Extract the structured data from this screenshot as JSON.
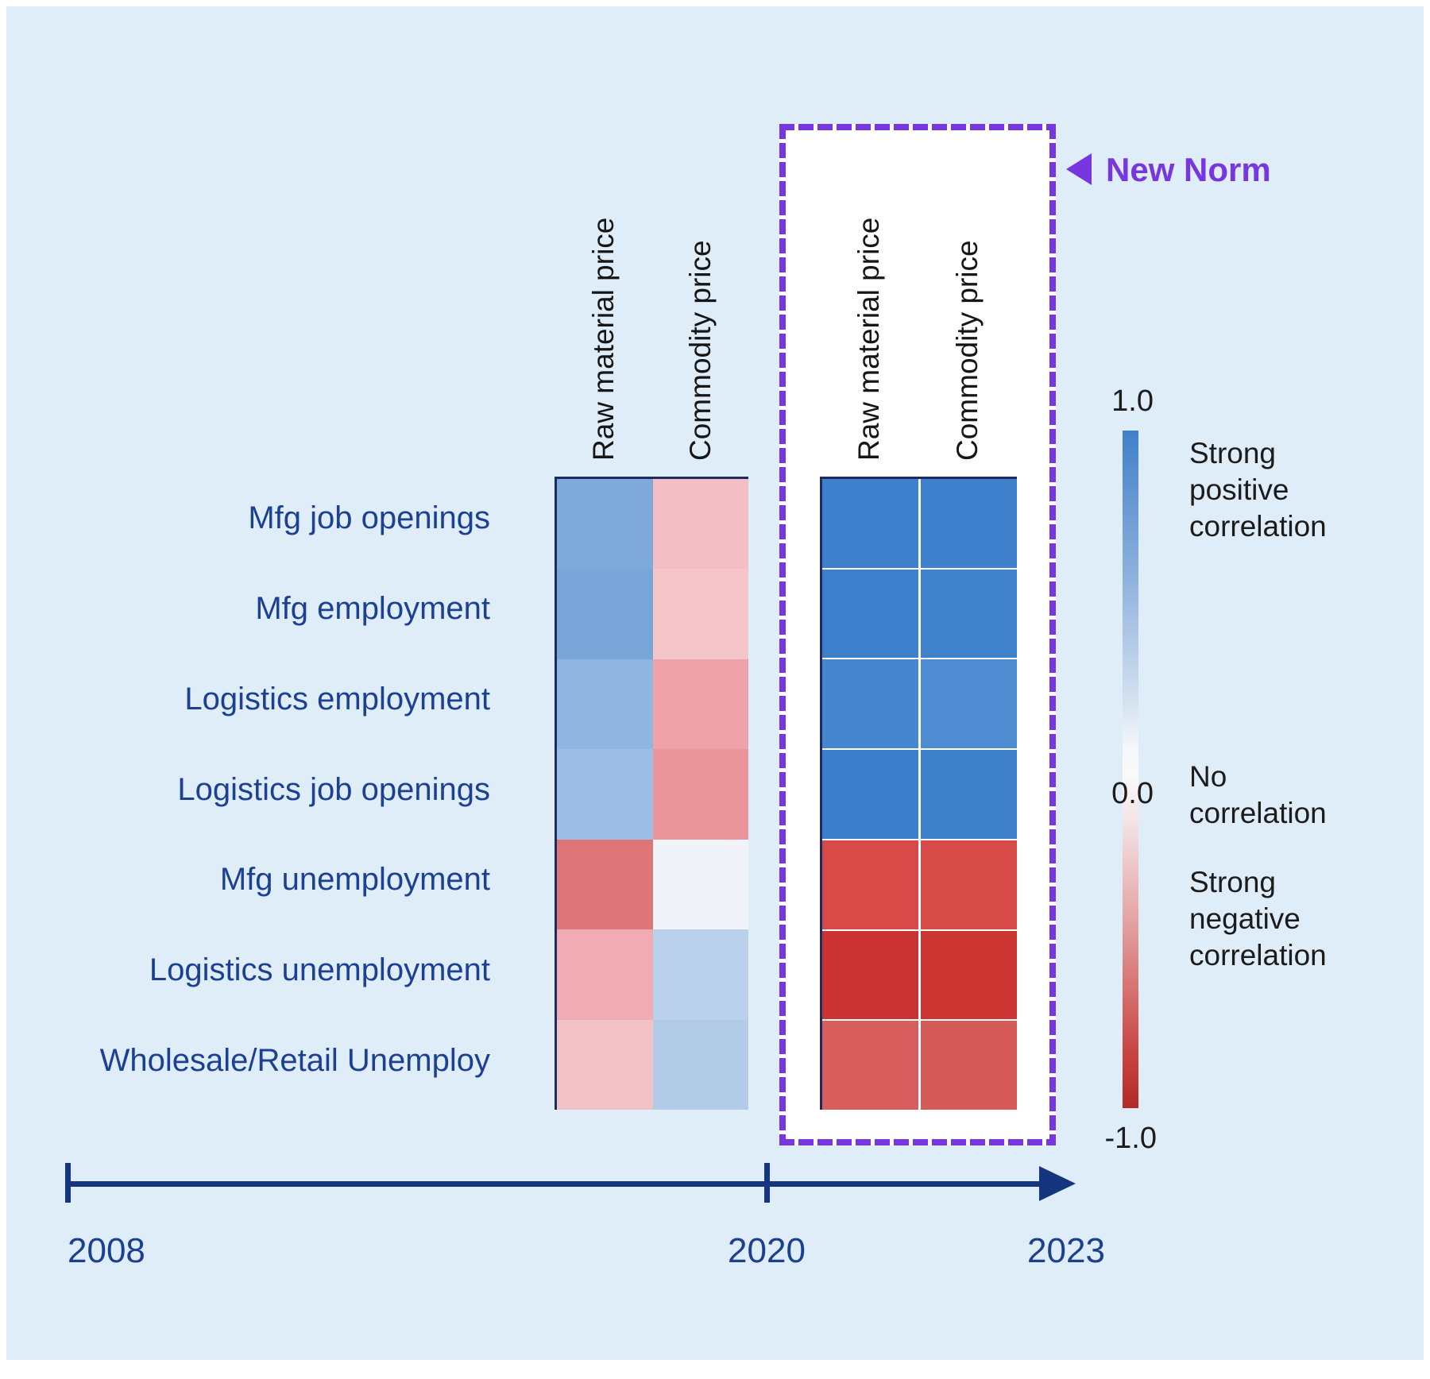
{
  "colors": {
    "panel_bg": "#DFEDF8",
    "accent_purple": "#7836E0",
    "row_label_navy": "#1B4094",
    "timeline_navy": "#16357F",
    "heatmap_edge": "#1E2B5E",
    "legend_strong_positive": "#3E80CB",
    "legend_no_correlation": "#FFFFFF",
    "legend_strong_negative": "#B12B28"
  },
  "annotation": {
    "label": "New Norm",
    "arrow_icon": "left-pointing-triangle"
  },
  "legend": {
    "top_value": "1.0",
    "mid_value": "0.0",
    "bottom_value": "-1.0",
    "strong_positive": "Strong\npositive\ncorrelation",
    "none": "No\ncorrelation",
    "strong_negative": "Strong\nnegative\ncorrelation"
  },
  "timeline": {
    "start_year": "2008",
    "mid_year": "2020",
    "end_year": "2023"
  },
  "chart_data": {
    "type": "heatmap",
    "rows": [
      "Mfg job openings",
      "Mfg employment",
      "Logistics employment",
      "Logistics job openings",
      "Mfg unemployment",
      "Logistics unemployment",
      "Wholesale/Retail Unemploy"
    ],
    "columns": [
      "Raw material price",
      "Commodity price"
    ],
    "scale": {
      "min": -1.0,
      "max": 1.0,
      "colormap": "red-white-blue"
    },
    "periods": [
      {
        "label": "2008-2020",
        "x_range": [
          "2008",
          "2020"
        ],
        "values": {
          "Raw material price": [
            0.45,
            0.47,
            0.35,
            0.3,
            -0.55,
            -0.3,
            -0.22
          ],
          "Commodity price": [
            -0.22,
            -0.18,
            -0.32,
            -0.42,
            0.05,
            0.28,
            0.3
          ]
        },
        "cell_colors": {
          "Raw material price": [
            "#80A9DB",
            "#7AA5D9",
            "#90B5E0",
            "#9CBDE4",
            "#DD7478",
            "#EFADB3",
            "#F2C1C5"
          ],
          "Commodity price": [
            "#F3BFC4",
            "#F5C6C9",
            "#EDA3A9",
            "#E9959B",
            "#F0F4FA",
            "#B9D1EA",
            "#B2CCE8"
          ]
        }
      },
      {
        "label": "2020-2023",
        "x_range": [
          "2020",
          "2023"
        ],
        "values": {
          "Raw material price": [
            0.85,
            0.85,
            0.78,
            0.86,
            -0.75,
            -0.88,
            -0.68
          ],
          "Commodity price": [
            0.85,
            0.84,
            0.72,
            0.85,
            -0.74,
            -0.87,
            -0.7
          ]
        },
        "cell_colors": {
          "Raw material price": [
            "#3E80CB",
            "#3C7FCA",
            "#4686CE",
            "#3B7EC9",
            "#D84A47",
            "#C93331",
            "#D75E5C"
          ],
          "Commodity price": [
            "#3E80CB",
            "#3F81CB",
            "#4F8BD1",
            "#3E80CA",
            "#D64B48",
            "#CB3532",
            "#D65B58"
          ]
        }
      }
    ]
  }
}
